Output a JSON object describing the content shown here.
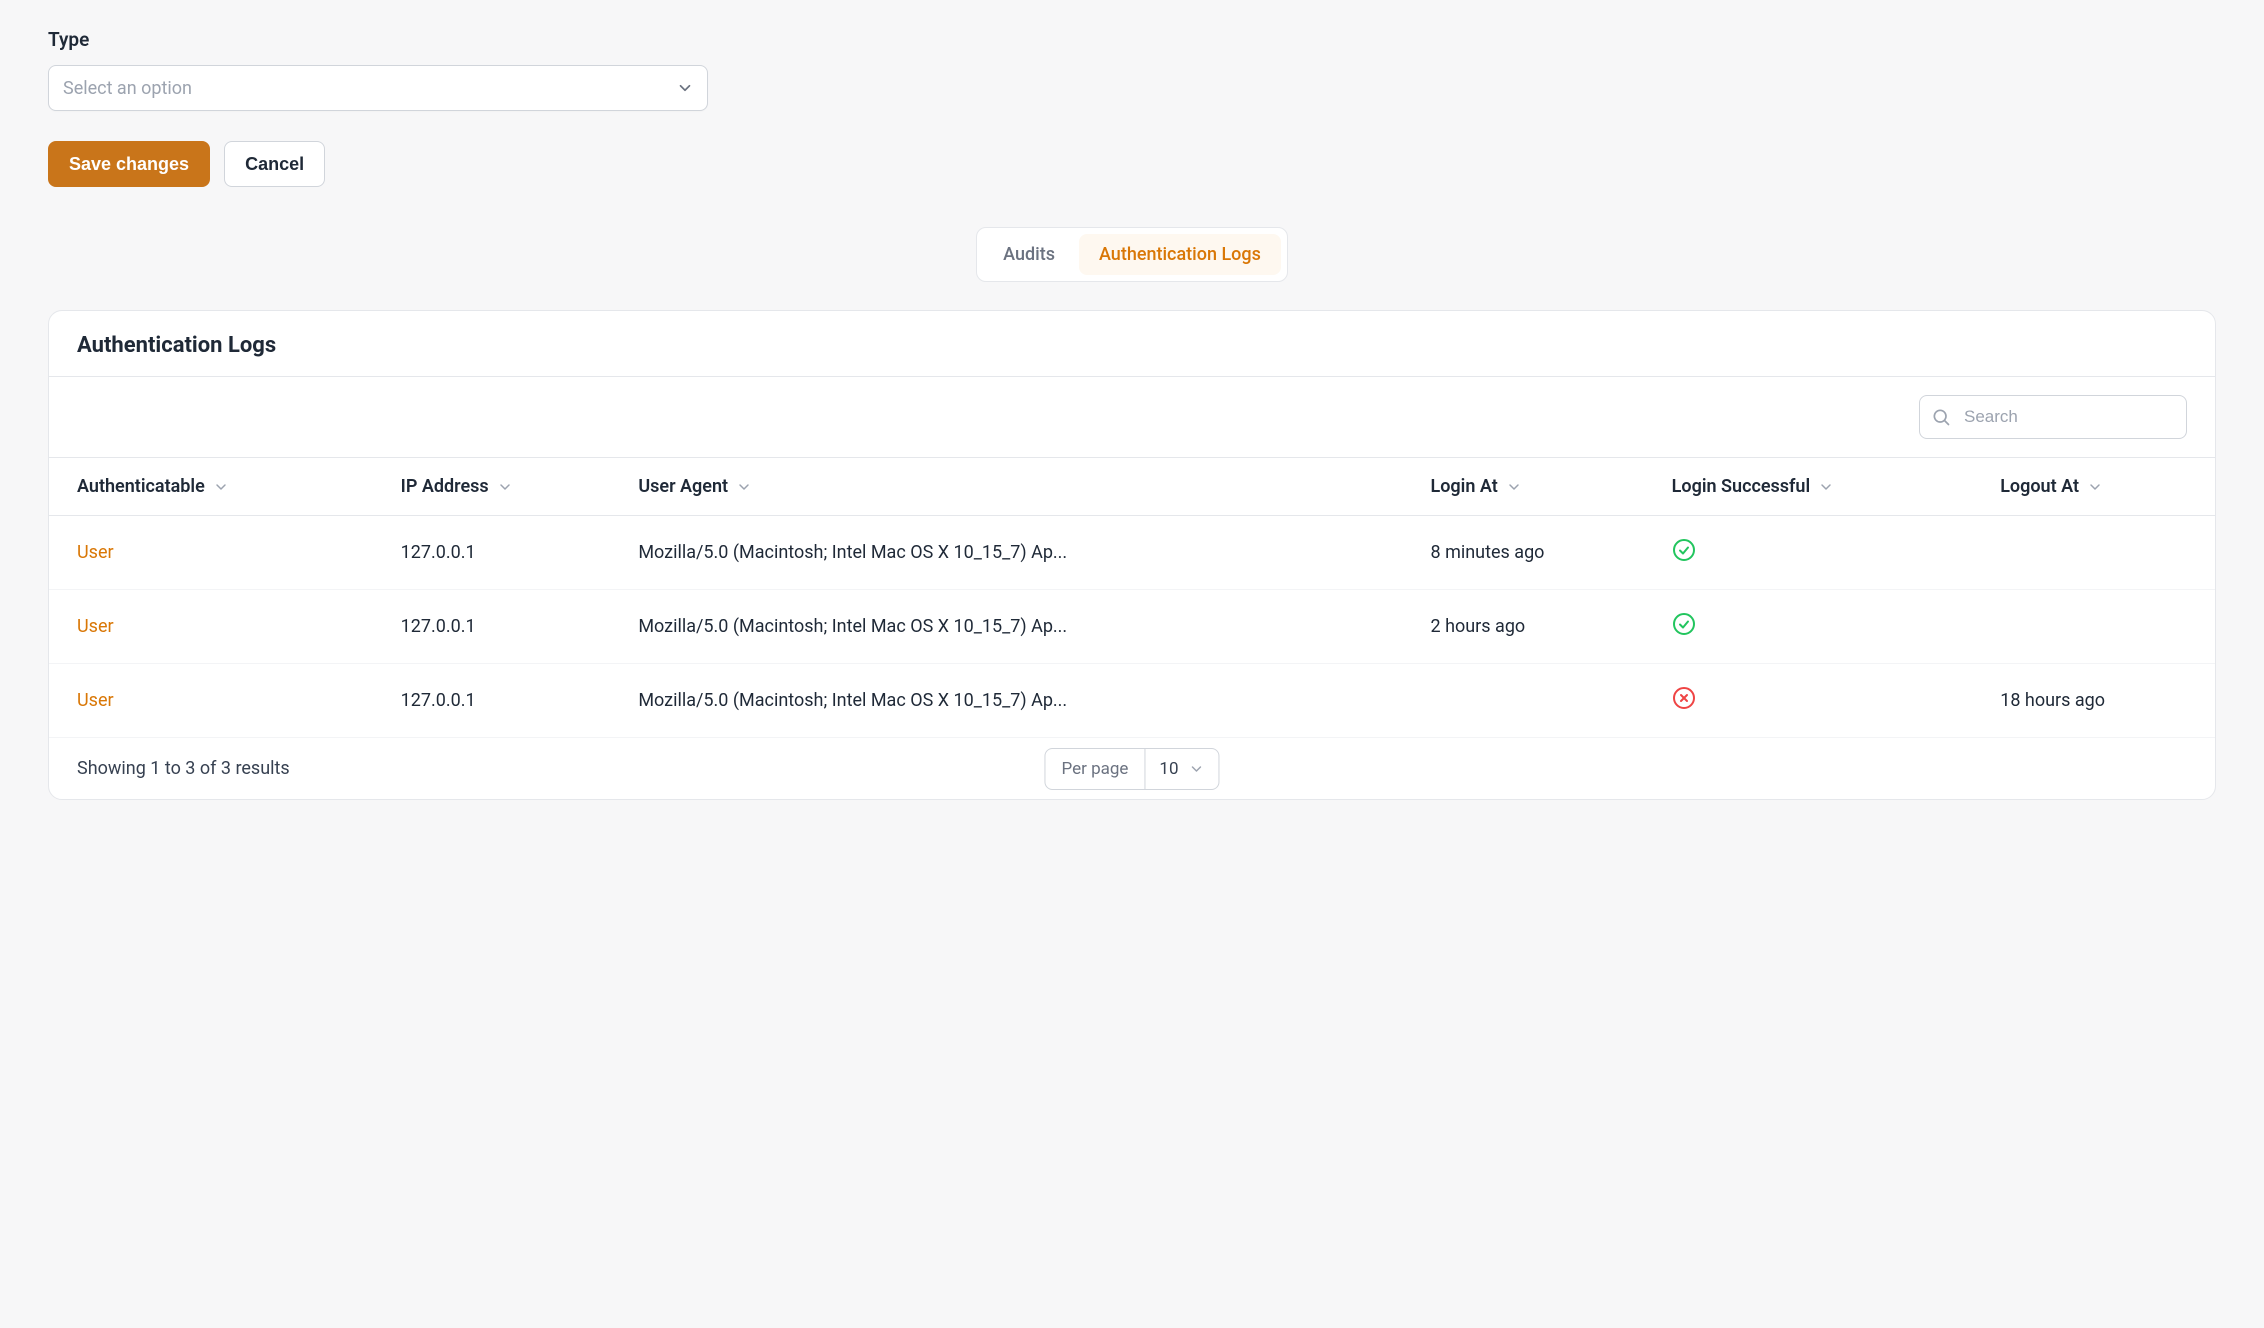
{
  "colors": {
    "accent": "#d97706",
    "button_primary_bg": "#c9751a",
    "success": "#22c55e",
    "danger": "#ef4444",
    "border": "#e5e7eb",
    "text_muted": "#6b7280",
    "page_bg": "#f7f7f8"
  },
  "form": {
    "type_label": "Type",
    "type_placeholder": "Select an option",
    "save_label": "Save changes",
    "cancel_label": "Cancel"
  },
  "tabs": {
    "items": [
      {
        "label": "Audits",
        "active": false
      },
      {
        "label": "Authentication Logs",
        "active": true
      }
    ]
  },
  "panel": {
    "title": "Authentication Logs",
    "search_placeholder": "Search"
  },
  "table": {
    "columns": [
      {
        "label": "Authenticatable"
      },
      {
        "label": "IP Address"
      },
      {
        "label": "User Agent"
      },
      {
        "label": "Login At"
      },
      {
        "label": "Login Successful"
      },
      {
        "label": "Logout At"
      }
    ],
    "rows": [
      {
        "authenticatable": "User",
        "ip": "127.0.0.1",
        "user_agent": "Mozilla/5.0 (Macintosh; Intel Mac OS X 10_15_7) Ap...",
        "login_at": "8 minutes ago",
        "login_successful": true,
        "logout_at": ""
      },
      {
        "authenticatable": "User",
        "ip": "127.0.0.1",
        "user_agent": "Mozilla/5.0 (Macintosh; Intel Mac OS X 10_15_7) Ap...",
        "login_at": "2 hours ago",
        "login_successful": true,
        "logout_at": ""
      },
      {
        "authenticatable": "User",
        "ip": "127.0.0.1",
        "user_agent": "Mozilla/5.0 (Macintosh; Intel Mac OS X 10_15_7) Ap...",
        "login_at": "",
        "login_successful": false,
        "logout_at": "18 hours ago"
      }
    ]
  },
  "pagination": {
    "summary": "Showing 1 to 3 of 3 results",
    "per_page_label": "Per page",
    "per_page_value": "10"
  }
}
